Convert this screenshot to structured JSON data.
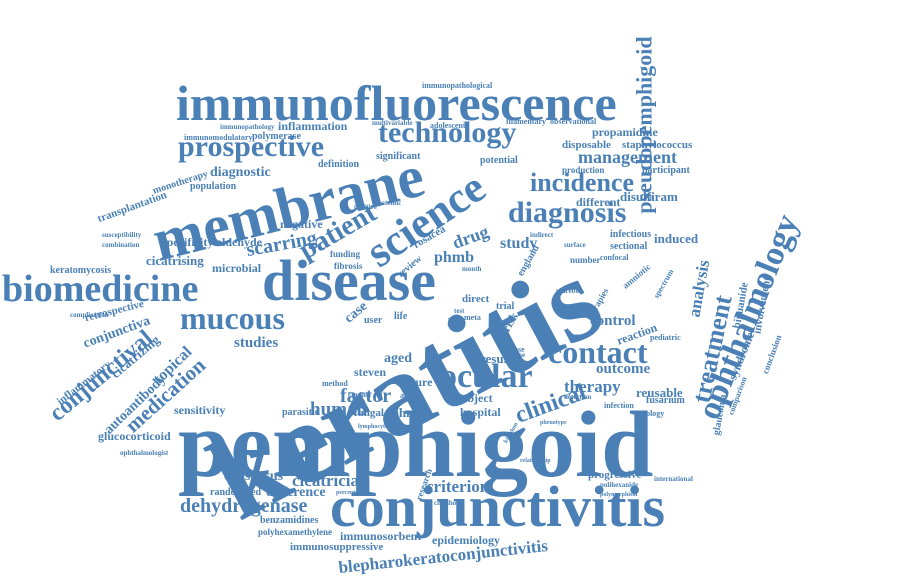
{
  "theme": {
    "word_color": "#4a80b5",
    "background": "#ffffff"
  },
  "words": [
    {
      "id": "keratitis",
      "text": "keratitis"
    },
    {
      "id": "pemphigoid",
      "text": "pemphigoid"
    },
    {
      "id": "immunofluorescence",
      "text": "immunofluorescence"
    },
    {
      "id": "membrane",
      "text": "membrane"
    },
    {
      "id": "conjunctivitis",
      "text": "conjunctivitis"
    },
    {
      "id": "disease",
      "text": "disease"
    },
    {
      "id": "biomedicine",
      "text": "biomedicine"
    },
    {
      "id": "ophthalmology",
      "text": "ophthalmology"
    },
    {
      "id": "pseudopemphigoid",
      "text": "pseudopemphigoid"
    },
    {
      "id": "science",
      "text": "science"
    },
    {
      "id": "technology",
      "text": "technology"
    },
    {
      "id": "prospective",
      "text": "prospective"
    },
    {
      "id": "diagnosis",
      "text": "diagnosis"
    },
    {
      "id": "incidence",
      "text": "incidence"
    },
    {
      "id": "contact",
      "text": "contact"
    },
    {
      "id": "ocular",
      "text": "ocular"
    },
    {
      "id": "mucous",
      "text": "mucous"
    },
    {
      "id": "treatment",
      "text": "treatment"
    },
    {
      "id": "patient",
      "text": "patient"
    },
    {
      "id": "management",
      "text": "management"
    },
    {
      "id": "blepharokeratoconjunctivitis",
      "text": "blepharokeratoconjunctivitis"
    },
    {
      "id": "dehydrogenase",
      "text": "dehydrogenase"
    },
    {
      "id": "clinical",
      "text": "clinical"
    },
    {
      "id": "conjunctival",
      "text": "conjunctival"
    },
    {
      "id": "criterion",
      "text": "criterion"
    },
    {
      "id": "medication",
      "text": "medication"
    },
    {
      "id": "factor",
      "text": "factor"
    },
    {
      "id": "cicatricial",
      "text": "cicatricial"
    },
    {
      "id": "scarring",
      "text": "scarring"
    },
    {
      "id": "therapy",
      "text": "therapy"
    },
    {
      "id": "human",
      "text": "human"
    },
    {
      "id": "analysis",
      "text": "analysis"
    },
    {
      "id": "drug",
      "text": "drug"
    },
    {
      "id": "phmb",
      "text": "phmb"
    },
    {
      "id": "study",
      "text": "study"
    },
    {
      "id": "diagnostic",
      "text": "diagnostic"
    },
    {
      "id": "inflammation",
      "text": "inflammation"
    },
    {
      "id": "propamidine",
      "text": "propamidine"
    },
    {
      "id": "disposable",
      "text": "disposable"
    },
    {
      "id": "staphylococcus",
      "text": "staphylococcus"
    },
    {
      "id": "participant",
      "text": "participant"
    },
    {
      "id": "disulfiram",
      "text": "disulfiram"
    },
    {
      "id": "different",
      "text": "different"
    },
    {
      "id": "infectious",
      "text": "infectious"
    },
    {
      "id": "sectional",
      "text": "sectional"
    },
    {
      "id": "induced",
      "text": "induced"
    },
    {
      "id": "control",
      "text": "control"
    },
    {
      "id": "reaction",
      "text": "reaction"
    },
    {
      "id": "outcome",
      "text": "outcome"
    },
    {
      "id": "reusable",
      "text": "reusable"
    },
    {
      "id": "result",
      "text": "result"
    },
    {
      "id": "aged",
      "text": "aged"
    },
    {
      "id": "culture",
      "text": "culture"
    },
    {
      "id": "subject",
      "text": "subject"
    },
    {
      "id": "hospital",
      "text": "hospital"
    },
    {
      "id": "johnson",
      "text": "johnson"
    },
    {
      "id": "steven",
      "text": "steven"
    },
    {
      "id": "fungal",
      "text": "fungal"
    },
    {
      "id": "parasitic",
      "text": "parasitic"
    },
    {
      "id": "sensitivity",
      "text": "sensitivity"
    },
    {
      "id": "glucocorticoid",
      "text": "glucocorticoid"
    },
    {
      "id": "autoantibody",
      "text": "autoantibody"
    },
    {
      "id": "topical",
      "text": "topical"
    },
    {
      "id": "cicatrizing",
      "text": "cicatrizing"
    },
    {
      "id": "inflammatory",
      "text": "inflammatory"
    },
    {
      "id": "conjunctiva",
      "text": "conjunctiva"
    },
    {
      "id": "retrospective",
      "text": "retrospective"
    },
    {
      "id": "keratomycosis",
      "text": "keratomycosis"
    },
    {
      "id": "cicatrising",
      "text": "cicatrising"
    },
    {
      "id": "specificity",
      "text": "specificity"
    },
    {
      "id": "aldehyde",
      "text": "aldehyde"
    },
    {
      "id": "microbial",
      "text": "microbial"
    },
    {
      "id": "negative",
      "text": "negative"
    },
    {
      "id": "transplantation",
      "text": "transplantation"
    },
    {
      "id": "monotherapy",
      "text": "monotherapy"
    },
    {
      "id": "population",
      "text": "population"
    },
    {
      "id": "immunomodulatory",
      "text": "immunomodulatory"
    },
    {
      "id": "polymerase",
      "text": "polymerase"
    },
    {
      "id": "immunopathology",
      "text": "immunopathology"
    },
    {
      "id": "immunopathological",
      "text": "immunopathological"
    },
    {
      "id": "definition",
      "text": "definition"
    },
    {
      "id": "significant",
      "text": "significant"
    },
    {
      "id": "potential",
      "text": "potential"
    },
    {
      "id": "production",
      "text": "production"
    },
    {
      "id": "adolescent",
      "text": "adolescent"
    },
    {
      "id": "filamentary",
      "text": "filamentary"
    },
    {
      "id": "observational",
      "text": "observational"
    },
    {
      "id": "multivariable",
      "text": "multivariable"
    },
    {
      "id": "studies",
      "text": "studies"
    },
    {
      "id": "consensus",
      "text": "consensus"
    },
    {
      "id": "difference",
      "text": "difference"
    },
    {
      "id": "randomized",
      "text": "randomized"
    },
    {
      "id": "benzamidines",
      "text": "benzamidines"
    },
    {
      "id": "polyhexamethylene",
      "text": "polyhexamethylene"
    },
    {
      "id": "immunosorbent",
      "text": "immunosorbent"
    },
    {
      "id": "immunosuppressive",
      "text": "immunosuppressive"
    },
    {
      "id": "epidemiology",
      "text": "epidemiology"
    },
    {
      "id": "progressive",
      "text": "progressive"
    },
    {
      "id": "fusarium",
      "text": "fusarium"
    },
    {
      "id": "biguanide",
      "text": "biguanide"
    },
    {
      "id": "involvement",
      "text": "involvement"
    },
    {
      "id": "syndrome",
      "text": "syndrome"
    },
    {
      "id": "conclusion",
      "text": "conclusion"
    },
    {
      "id": "glaucoma",
      "text": "glaucoma"
    },
    {
      "id": "comparison",
      "text": "comparison"
    },
    {
      "id": "serology",
      "text": "serology"
    },
    {
      "id": "infection",
      "text": "infection"
    },
    {
      "id": "pediatric",
      "text": "pediatric"
    },
    {
      "id": "amniotic",
      "text": "amniotic"
    },
    {
      "id": "number",
      "text": "number"
    },
    {
      "id": "confocal",
      "text": "confocal"
    },
    {
      "id": "polihexanide",
      "text": "polihexanide"
    },
    {
      "id": "international",
      "text": "international"
    },
    {
      "id": "polymorphism",
      "text": "polymorphism"
    },
    {
      "id": "ophthalmologist",
      "text": "ophthalmologist"
    },
    {
      "id": "susceptibility",
      "text": "susceptibility"
    },
    {
      "id": "combination",
      "text": "combination"
    },
    {
      "id": "complication",
      "text": "complication"
    },
    {
      "id": "rosacea",
      "text": "rosacea"
    },
    {
      "id": "review",
      "text": "review"
    },
    {
      "id": "case",
      "text": "case"
    },
    {
      "id": "risk",
      "text": "risk"
    },
    {
      "id": "england",
      "text": "england"
    },
    {
      "id": "surface",
      "text": "surface"
    },
    {
      "id": "indirect",
      "text": "indirect"
    },
    {
      "id": "systemic",
      "text": "systemic"
    },
    {
      "id": "fibrosis",
      "text": "fibrosis"
    },
    {
      "id": "funding",
      "text": "funding"
    },
    {
      "id": "adult",
      "text": "adult"
    },
    {
      "id": "childhood",
      "text": "childhood"
    },
    {
      "id": "percentage",
      "text": "percentage"
    },
    {
      "id": "mouse",
      "text": "mouse"
    },
    {
      "id": "direct",
      "text": "direct"
    },
    {
      "id": "trial",
      "text": "trial"
    },
    {
      "id": "cause",
      "text": "cause"
    },
    {
      "id": "month",
      "text": "month"
    },
    {
      "id": "year",
      "text": "year"
    },
    {
      "id": "meta",
      "text": "meta"
    },
    {
      "id": "user",
      "text": "user"
    },
    {
      "id": "life",
      "text": "life"
    },
    {
      "id": "test",
      "text": "test"
    },
    {
      "id": "positive",
      "text": "positive"
    },
    {
      "id": "method",
      "text": "method"
    },
    {
      "id": "therapies",
      "text": "therapies"
    },
    {
      "id": "spectrum",
      "text": "spectrum"
    },
    {
      "id": "placebo",
      "text": "placebo"
    },
    {
      "id": "detection",
      "text": "detection"
    },
    {
      "id": "phenotype",
      "text": "phenotype"
    },
    {
      "id": "kingdom",
      "text": "kingdom"
    },
    {
      "id": "research",
      "text": "research"
    },
    {
      "id": "relationship",
      "text": "relationship"
    },
    {
      "id": "laminin",
      "text": "laminin"
    },
    {
      "id": "lymphocyte",
      "text": "lymphocyte"
    }
  ]
}
